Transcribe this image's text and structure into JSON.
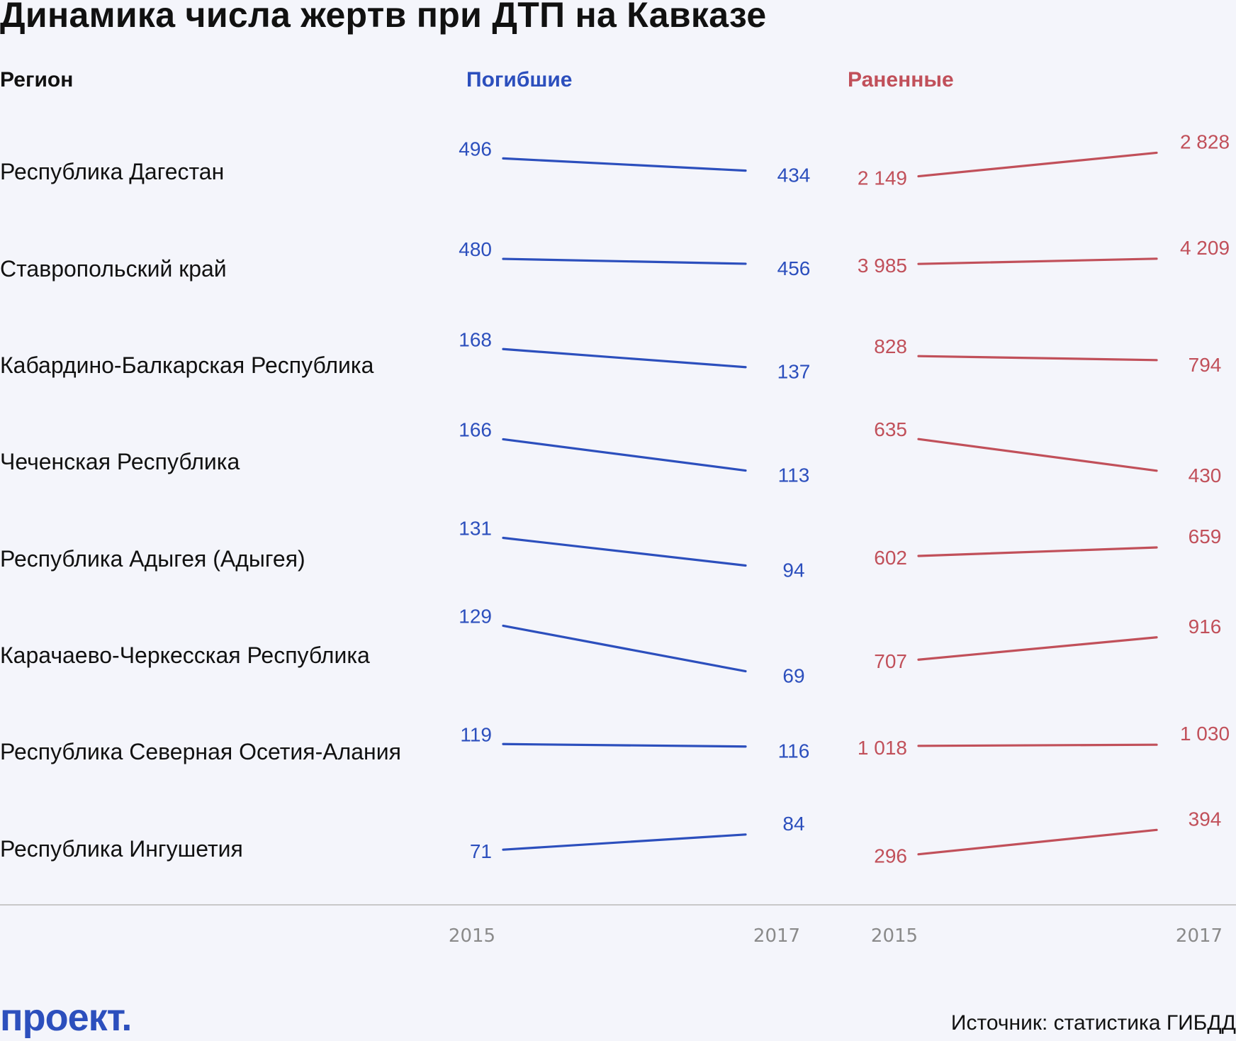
{
  "title": "Динамика числа жертв при ДТП на Кавказе",
  "columns": {
    "region": "Регион",
    "killed": "Погибшие",
    "injured": "Раненные"
  },
  "colors": {
    "killed": "#2c4fbd",
    "injured": "#c1505a",
    "logo": "#2c4fbd",
    "axis": "#c8c8c8"
  },
  "footer": {
    "logo": "проект.",
    "source": "Источник: статистика ГИБДД"
  },
  "chart_data": [
    {
      "type": "line",
      "title": "Погибшие",
      "x": [
        "2015",
        "2017"
      ],
      "series": [
        {
          "name": "Республика Дагестан",
          "values": [
            496,
            434
          ],
          "labels": [
            "496",
            "434"
          ]
        },
        {
          "name": "Ставропольский край",
          "values": [
            480,
            456
          ],
          "labels": [
            "480",
            "456"
          ]
        },
        {
          "name": "Кабардино-Балкарская Республика",
          "values": [
            168,
            137
          ],
          "labels": [
            "168",
            "137"
          ]
        },
        {
          "name": "Чеченская Республика",
          "values": [
            166,
            113
          ],
          "labels": [
            "166",
            "113"
          ]
        },
        {
          "name": "Республика Адыгея (Адыгея)",
          "values": [
            131,
            94
          ],
          "labels": [
            "131",
            "94"
          ]
        },
        {
          "name": "Карачаево-Черкесская Республика",
          "values": [
            129,
            69
          ],
          "labels": [
            "129",
            "69"
          ]
        },
        {
          "name": "Республика Северная Осетия-Алания",
          "values": [
            119,
            116
          ],
          "labels": [
            "119",
            "116"
          ]
        },
        {
          "name": "Республика Ингушетия",
          "values": [
            71,
            84
          ],
          "labels": [
            "71",
            "84"
          ]
        }
      ]
    },
    {
      "type": "line",
      "title": "Раненные",
      "x": [
        "2015",
        "2017"
      ],
      "series": [
        {
          "name": "Республика Дагестан",
          "values": [
            2149,
            2828
          ],
          "labels": [
            "2 149",
            "2 828"
          ]
        },
        {
          "name": "Ставропольский край",
          "values": [
            3985,
            4209
          ],
          "labels": [
            "3 985",
            "4 209"
          ]
        },
        {
          "name": "Кабардино-Балкарская Республика",
          "values": [
            828,
            794
          ],
          "labels": [
            "828",
            "794"
          ]
        },
        {
          "name": "Чеченская Республика",
          "values": [
            635,
            430
          ],
          "labels": [
            "635",
            "430"
          ]
        },
        {
          "name": "Республика Адыгея (Адыгея)",
          "values": [
            602,
            659
          ],
          "labels": [
            "602",
            "659"
          ]
        },
        {
          "name": "Карачаево-Черкесская Республика",
          "values": [
            707,
            916
          ],
          "labels": [
            "707",
            "916"
          ]
        },
        {
          "name": "Республика Северная Осетия-Алания",
          "values": [
            1018,
            1030
          ],
          "labels": [
            "1 018",
            "1 030"
          ]
        },
        {
          "name": "Республика Ингушетия",
          "values": [
            296,
            394
          ],
          "labels": [
            "296",
            "394"
          ]
        }
      ]
    }
  ]
}
